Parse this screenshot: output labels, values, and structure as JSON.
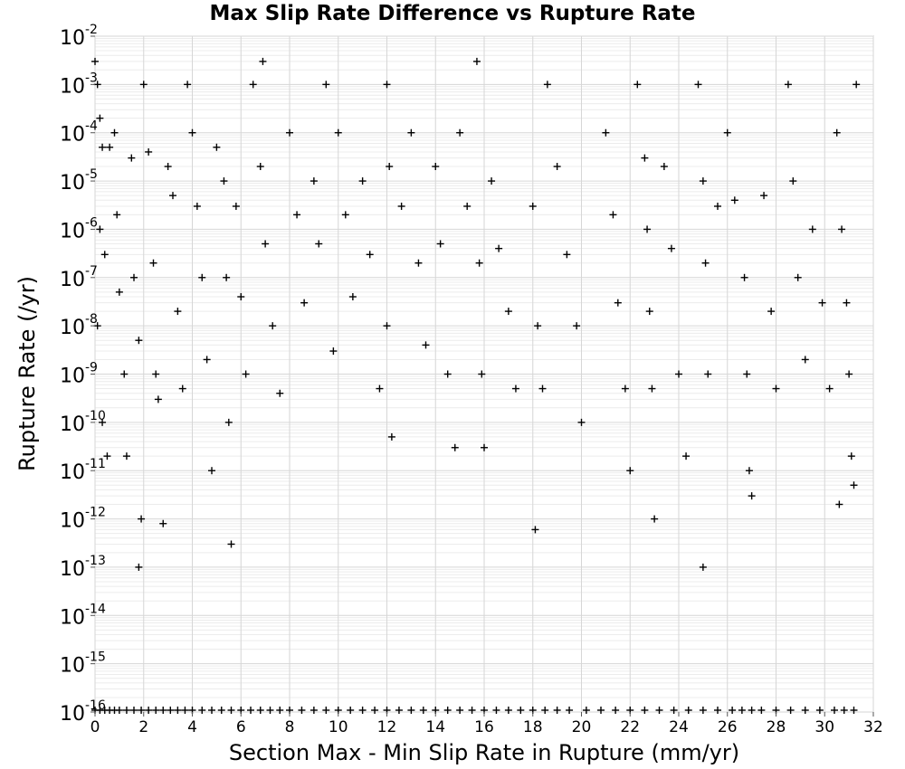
{
  "chart_data": {
    "type": "scatter",
    "title": "Max Slip Rate Difference vs Rupture Rate",
    "xlabel": "Section Max - Min Slip Rate in Rupture (mm/yr)",
    "ylabel": "Rupture Rate (/yr)",
    "xlim": [
      0,
      32
    ],
    "ylim": [
      1e-16,
      0.01
    ],
    "yscale": "log",
    "x_ticks": [
      "0",
      "2",
      "4",
      "6",
      "8",
      "10",
      "12",
      "14",
      "16",
      "18",
      "20",
      "22",
      "24",
      "26",
      "28",
      "30",
      "32"
    ],
    "y_ticks": [
      {
        "base": "10",
        "exp": "-16"
      },
      {
        "base": "10",
        "exp": "-15"
      },
      {
        "base": "10",
        "exp": "-14"
      },
      {
        "base": "10",
        "exp": "-13"
      },
      {
        "base": "10",
        "exp": "-12"
      },
      {
        "base": "10",
        "exp": "-11"
      },
      {
        "base": "10",
        "exp": "-10"
      },
      {
        "base": "10",
        "exp": "-9"
      },
      {
        "base": "10",
        "exp": "-8"
      },
      {
        "base": "10",
        "exp": "-7"
      },
      {
        "base": "10",
        "exp": "-6"
      },
      {
        "base": "10",
        "exp": "-5"
      },
      {
        "base": "10",
        "exp": "-4"
      },
      {
        "base": "10",
        "exp": "-3"
      },
      {
        "base": "10",
        "exp": "-2"
      }
    ],
    "grid": true,
    "marker": "+",
    "marker_color": "#000000",
    "series": [
      {
        "points": [
          [
            0.0,
            0.003
          ],
          [
            0.1,
            0.001
          ],
          [
            0.2,
            0.0002
          ],
          [
            0.3,
            5e-05
          ],
          [
            0.2,
            1e-06
          ],
          [
            0.4,
            3e-07
          ],
          [
            0.1,
            1e-08
          ],
          [
            0.3,
            1e-10
          ],
          [
            0.5,
            2e-11
          ],
          [
            0.6,
            5e-05
          ],
          [
            0.8,
            0.0001
          ],
          [
            0.9,
            2e-06
          ],
          [
            1.0,
            5e-08
          ],
          [
            1.2,
            1e-09
          ],
          [
            1.3,
            2e-11
          ],
          [
            1.5,
            3e-05
          ],
          [
            1.6,
            1e-07
          ],
          [
            1.8,
            5e-09
          ],
          [
            1.9,
            1e-12
          ],
          [
            1.8,
            1e-13
          ],
          [
            2.0,
            0.001
          ],
          [
            2.2,
            4e-05
          ],
          [
            2.4,
            2e-07
          ],
          [
            2.5,
            1e-09
          ],
          [
            2.6,
            3e-10
          ],
          [
            2.8,
            8e-13
          ],
          [
            3.0,
            2e-05
          ],
          [
            3.2,
            5e-06
          ],
          [
            3.4,
            2e-08
          ],
          [
            3.6,
            5e-10
          ],
          [
            3.8,
            0.001
          ],
          [
            4.0,
            0.0001
          ],
          [
            4.2,
            3e-06
          ],
          [
            4.4,
            1e-07
          ],
          [
            4.6,
            2e-09
          ],
          [
            4.8,
            1e-11
          ],
          [
            5.0,
            5e-05
          ],
          [
            5.3,
            1e-05
          ],
          [
            5.4,
            1e-07
          ],
          [
            5.5,
            1e-10
          ],
          [
            5.6,
            3e-13
          ],
          [
            5.8,
            3e-06
          ],
          [
            6.0,
            4e-08
          ],
          [
            6.2,
            1e-09
          ],
          [
            6.5,
            0.001
          ],
          [
            6.8,
            2e-05
          ],
          [
            6.9,
            0.003
          ],
          [
            7.0,
            5e-07
          ],
          [
            7.3,
            1e-08
          ],
          [
            7.6,
            4e-10
          ],
          [
            8.0,
            0.0001
          ],
          [
            8.3,
            2e-06
          ],
          [
            8.6,
            3e-08
          ],
          [
            9.0,
            1e-05
          ],
          [
            9.2,
            5e-07
          ],
          [
            9.5,
            0.001
          ],
          [
            9.8,
            3e-09
          ],
          [
            10.0,
            0.0001
          ],
          [
            10.3,
            2e-06
          ],
          [
            10.6,
            4e-08
          ],
          [
            11.0,
            1e-05
          ],
          [
            11.3,
            3e-07
          ],
          [
            11.7,
            5e-10
          ],
          [
            12.0,
            0.001
          ],
          [
            12.1,
            2e-05
          ],
          [
            12.0,
            1e-08
          ],
          [
            12.2,
            5e-11
          ],
          [
            12.6,
            3e-06
          ],
          [
            13.0,
            0.0001
          ],
          [
            13.3,
            2e-07
          ],
          [
            13.6,
            4e-09
          ],
          [
            14.0,
            2e-05
          ],
          [
            14.2,
            5e-07
          ],
          [
            14.5,
            1e-09
          ],
          [
            14.8,
            3e-11
          ],
          [
            15.0,
            0.0001
          ],
          [
            15.3,
            3e-06
          ],
          [
            15.7,
            0.003
          ],
          [
            15.8,
            2e-07
          ],
          [
            15.9,
            1e-09
          ],
          [
            16.0,
            3e-11
          ],
          [
            16.3,
            1e-05
          ],
          [
            16.6,
            4e-07
          ],
          [
            17.0,
            2e-08
          ],
          [
            17.3,
            5e-10
          ],
          [
            18.0,
            3e-06
          ],
          [
            18.2,
            1e-08
          ],
          [
            18.4,
            5e-10
          ],
          [
            18.1,
            6e-13
          ],
          [
            18.6,
            0.001
          ],
          [
            19.0,
            2e-05
          ],
          [
            19.4,
            3e-07
          ],
          [
            19.8,
            1e-08
          ],
          [
            20.0,
            1e-10
          ],
          [
            21.0,
            0.0001
          ],
          [
            21.3,
            2e-06
          ],
          [
            21.5,
            3e-08
          ],
          [
            21.8,
            5e-10
          ],
          [
            22.0,
            1e-11
          ],
          [
            22.3,
            0.001
          ],
          [
            22.6,
            3e-05
          ],
          [
            22.7,
            1e-06
          ],
          [
            22.8,
            2e-08
          ],
          [
            22.9,
            5e-10
          ],
          [
            23.0,
            1e-12
          ],
          [
            23.4,
            2e-05
          ],
          [
            23.7,
            4e-07
          ],
          [
            24.0,
            1e-09
          ],
          [
            24.3,
            2e-11
          ],
          [
            24.8,
            0.001
          ],
          [
            25.0,
            1e-05
          ],
          [
            25.1,
            2e-07
          ],
          [
            25.2,
            1e-09
          ],
          [
            25.0,
            1e-13
          ],
          [
            25.6,
            3e-06
          ],
          [
            26.0,
            0.0001
          ],
          [
            26.3,
            4e-06
          ],
          [
            26.7,
            1e-07
          ],
          [
            26.8,
            1e-09
          ],
          [
            26.9,
            1e-11
          ],
          [
            27.0,
            3e-12
          ],
          [
            27.5,
            5e-06
          ],
          [
            27.8,
            2e-08
          ],
          [
            28.0,
            5e-10
          ],
          [
            28.5,
            0.001
          ],
          [
            28.7,
            1e-05
          ],
          [
            28.9,
            1e-07
          ],
          [
            29.2,
            2e-09
          ],
          [
            29.5,
            1e-06
          ],
          [
            29.9,
            3e-08
          ],
          [
            30.2,
            5e-10
          ],
          [
            30.5,
            0.0001
          ],
          [
            30.7,
            1e-06
          ],
          [
            30.9,
            3e-08
          ],
          [
            31.0,
            1e-09
          ],
          [
            31.1,
            2e-11
          ],
          [
            31.2,
            5e-12
          ],
          [
            30.6,
            2e-12
          ],
          [
            31.3,
            0.001
          ]
        ]
      }
    ],
    "baseline_x": [
      0.0,
      0.2,
      0.4,
      0.6,
      0.8,
      1.0,
      1.3,
      1.6,
      1.9,
      2.2,
      2.5,
      2.8,
      3.1,
      3.4,
      3.7,
      4.0,
      4.4,
      4.8,
      5.2,
      5.6,
      6.0,
      6.4,
      6.8,
      7.2,
      7.6,
      8.0,
      8.5,
      9.0,
      9.5,
      10.0,
      10.5,
      11.0,
      11.5,
      12.0,
      12.5,
      13.0,
      13.5,
      14.0,
      14.5,
      15.0,
      15.5,
      16.0,
      16.5,
      17.0,
      17.5,
      18.0,
      18.5,
      19.0,
      19.5,
      20.2,
      20.8,
      21.4,
      22.0,
      22.6,
      23.2,
      23.8,
      24.4,
      25.0,
      25.6,
      26.2,
      26.6,
      27.0,
      27.4,
      28.0,
      28.6,
      29.2,
      29.8,
      30.4,
      30.8,
      31.2
    ],
    "baseline_y": 1e-16
  }
}
